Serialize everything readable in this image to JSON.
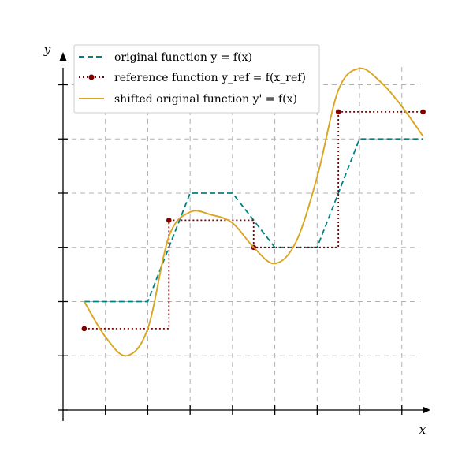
{
  "chart_data": {
    "type": "line",
    "xlabel": "x",
    "ylabel": "y",
    "xlim": [
      0,
      8.6
    ],
    "ylim": [
      0,
      6.4
    ],
    "x_ticks": [
      1,
      2,
      3,
      4,
      5,
      6,
      7,
      8
    ],
    "y_ticks": [
      1,
      2,
      3,
      4,
      5,
      6
    ],
    "grid": true,
    "legend_position": "top-left",
    "series": [
      {
        "name": "original function y = f(x)",
        "style": "dashed",
        "color": "#008080",
        "x": [
          0.5,
          2.0,
          3.0,
          4.0,
          5.0,
          6.0,
          7.0,
          8.5
        ],
        "y": [
          2.0,
          2.0,
          4.0,
          4.0,
          3.0,
          3.0,
          5.0,
          5.0
        ]
      },
      {
        "name": "reference function y_ref = f(x_ref)",
        "style": "dotted-step",
        "color": "#800000",
        "markers": true,
        "x": [
          0.5,
          2.5,
          4.5,
          6.5,
          8.5
        ],
        "y": [
          1.5,
          3.5,
          3.0,
          5.5,
          5.5
        ]
      },
      {
        "name": "shifted original function y' = f(x)",
        "style": "solid",
        "color": "#DAA520",
        "x": [
          0.5,
          1.0,
          1.5,
          2.0,
          2.5,
          3.0,
          3.5,
          4.0,
          4.5,
          5.0,
          5.5,
          6.0,
          6.5,
          7.0,
          7.5,
          8.0,
          8.5
        ],
        "y": [
          2.0,
          1.35,
          1.0,
          1.5,
          3.2,
          3.65,
          3.6,
          3.45,
          3.0,
          2.7,
          3.1,
          4.3,
          5.9,
          6.3,
          6.05,
          5.6,
          5.05
        ]
      }
    ]
  },
  "colors": {
    "axis": "#000000",
    "grid": "#b0b0b0"
  }
}
